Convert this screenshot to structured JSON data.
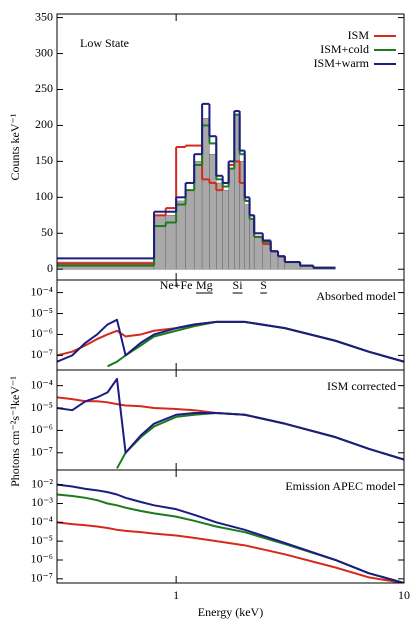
{
  "chart_data": [
    {
      "type": "histogram",
      "title": "Low State",
      "ylabel": "Counts keV⁻¹",
      "bins": [
        0.3,
        0.8,
        0.9,
        1.0,
        1.1,
        1.2,
        1.3,
        1.4,
        1.5,
        1.6,
        1.7,
        1.8,
        1.9,
        2.0,
        2.1,
        2.2,
        2.4,
        2.6,
        2.8,
        3.0,
        3.5,
        4.0,
        5.0
      ],
      "series": [
        {
          "color": "#a9a9a9",
          "values": [
            10,
            75,
            75,
            95,
            110,
            150,
            210,
            160,
            120,
            110,
            140,
            215,
            150,
            90,
            70,
            45,
            35,
            25,
            18,
            10,
            5,
            2
          ]
        },
        {
          "name": "ISM",
          "color": "#d42a1e",
          "values": [
            8,
            75,
            85,
            170,
            172,
            172,
            125,
            120,
            110,
            120,
            145,
            150,
            120,
            95,
            75,
            45,
            35,
            25,
            18,
            10,
            5,
            2
          ]
        },
        {
          "name": "ISM+cold",
          "color": "#1d7a1d",
          "values": [
            5,
            60,
            65,
            90,
            110,
            145,
            200,
            175,
            125,
            115,
            140,
            215,
            160,
            95,
            70,
            45,
            38,
            25,
            18,
            10,
            5,
            2
          ]
        },
        {
          "name": "ISM+warm",
          "color": "#1c1c82",
          "values": [
            15,
            80,
            80,
            100,
            120,
            160,
            230,
            185,
            130,
            120,
            150,
            220,
            165,
            100,
            75,
            50,
            40,
            25,
            18,
            10,
            5,
            2
          ]
        }
      ],
      "xlim": [
        0.3,
        10
      ],
      "xticks": [
        1,
        10
      ],
      "xscale": "log",
      "ylim": [
        -15,
        355
      ],
      "yticks": [
        0,
        50,
        100,
        150,
        200,
        250,
        300,
        350
      ],
      "legend": "upper right"
    },
    {
      "type": "line",
      "title": "Absorbed model",
      "line_labels": [
        "Ne+Fe",
        "Mg",
        "Si",
        "S"
      ],
      "x": [
        0.3,
        0.35,
        0.4,
        0.45,
        0.5,
        0.55,
        0.6,
        0.7,
        0.8,
        1,
        1.2,
        1.5,
        2,
        3,
        5,
        7,
        10
      ],
      "series": [
        {
          "color": "#d42a1e",
          "values": [
            1e-07,
            1.5e-07,
            3e-07,
            6e-07,
            1e-06,
            1.5e-06,
            8e-07,
            1e-06,
            1.5e-06,
            2e-06,
            3e-06,
            4e-06,
            4e-06,
            2e-06,
            5e-07,
            1.5e-07,
            5e-08
          ]
        },
        {
          "color": "#1d7a1d",
          "values": [
            null,
            null,
            null,
            null,
            3e-08,
            5e-08,
            1e-07,
            3e-07,
            8e-07,
            1.5e-06,
            2.5e-06,
            4e-06,
            4e-06,
            2e-06,
            5e-07,
            1.5e-07,
            5e-08
          ]
        },
        {
          "color": "#1c1c82",
          "values": [
            5e-08,
            1e-07,
            4e-07,
            1e-06,
            3e-06,
            5e-06,
            1e-07,
            4e-07,
            1e-06,
            2e-06,
            3e-06,
            4e-06,
            4e-06,
            2e-06,
            5e-07,
            1.5e-07,
            5e-08
          ]
        }
      ],
      "xlim": [
        0.3,
        10
      ],
      "xticks": [
        1,
        10
      ],
      "xscale": "log",
      "yscale": "log",
      "ylim": [
        2e-08,
        0.0004
      ],
      "yticks": [
        {
          "value": 0.0001,
          "label": "10⁻⁴"
        },
        {
          "value": 1e-05,
          "label": "10⁻⁵"
        },
        {
          "value": 1e-06,
          "label": "10⁻⁶"
        },
        {
          "value": 1e-07,
          "label": "10⁻⁷"
        }
      ]
    },
    {
      "type": "line",
      "title": "ISM corrected",
      "ylabel": "Photons cm⁻²s⁻¹keV⁻¹",
      "x": [
        0.3,
        0.35,
        0.4,
        0.45,
        0.5,
        0.55,
        0.6,
        0.7,
        0.8,
        1,
        1.2,
        1.5,
        2,
        3,
        5,
        7,
        10
      ],
      "series": [
        {
          "color": "#d42a1e",
          "values": [
            3e-05,
            2.5e-05,
            2e-05,
            2e-05,
            1.8e-05,
            1.5e-05,
            1.3e-05,
            1.2e-05,
            1e-05,
            9e-06,
            8e-06,
            6e-06,
            5e-06,
            2e-06,
            5e-07,
            1.5e-07,
            5e-08
          ]
        },
        {
          "color": "#1d7a1d",
          "values": [
            null,
            null,
            null,
            null,
            null,
            2e-08,
            1e-07,
            5e-07,
            1.5e-06,
            4e-06,
            5e-06,
            6e-06,
            5e-06,
            2e-06,
            5e-07,
            1.5e-07,
            5e-08
          ]
        },
        {
          "color": "#1c1c82",
          "values": [
            1e-05,
            8e-06,
            2e-05,
            3e-05,
            5e-05,
            0.0002,
            1e-07,
            6e-07,
            2e-06,
            5e-06,
            6e-06,
            6e-06,
            5e-06,
            2e-06,
            5e-07,
            1.5e-07,
            5e-08
          ]
        }
      ],
      "xlim": [
        0.3,
        10
      ],
      "xticks": [
        1,
        10
      ],
      "xscale": "log",
      "yscale": "log",
      "ylim": [
        1.7e-08,
        0.0005
      ],
      "yticks": [
        {
          "value": 0.0001,
          "label": "10⁻⁴"
        },
        {
          "value": 1e-05,
          "label": "10⁻⁵"
        },
        {
          "value": 1e-06,
          "label": "10⁻⁶"
        },
        {
          "value": 1e-07,
          "label": "10⁻⁷"
        }
      ]
    },
    {
      "type": "line",
      "title": "Emission APEC model",
      "xlabel": "Energy (keV)",
      "x": [
        0.3,
        0.35,
        0.4,
        0.45,
        0.5,
        0.55,
        0.6,
        0.7,
        0.8,
        1,
        1.2,
        1.5,
        2,
        3,
        5,
        7,
        10
      ],
      "series": [
        {
          "color": "#d42a1e",
          "values": [
            0.0001,
            8e-05,
            7e-05,
            6e-05,
            5e-05,
            4e-05,
            3.5e-05,
            3e-05,
            2.5e-05,
            2e-05,
            1.5e-05,
            1e-05,
            6e-06,
            2e-06,
            4e-07,
            1.2e-07,
            6e-08
          ]
        },
        {
          "color": "#1d7a1d",
          "values": [
            0.003,
            0.0025,
            0.002,
            0.0015,
            0.001,
            0.0008,
            0.0006,
            0.0004,
            0.0003,
            0.0002,
            0.00012,
            6e-05,
            3e-05,
            7e-06,
            1e-06,
            2e-07,
            6e-08
          ]
        },
        {
          "color": "#1c1c82",
          "values": [
            0.01,
            0.008,
            0.006,
            0.005,
            0.004,
            0.003,
            0.002,
            0.0012,
            0.0008,
            0.0005,
            0.00025,
            0.0001,
            4e-05,
            8e-06,
            1e-06,
            2e-07,
            6e-08
          ]
        }
      ],
      "xlim": [
        0.3,
        10
      ],
      "xticks": [
        1,
        10
      ],
      "xscale": "log",
      "yscale": "log",
      "ylim": [
        6e-08,
        0.06
      ],
      "yticks": [
        {
          "value": 0.01,
          "label": "10⁻²"
        },
        {
          "value": 0.001,
          "label": "10⁻³"
        },
        {
          "value": 0.0001,
          "label": "10⁻⁴"
        },
        {
          "value": 1e-05,
          "label": "10⁻⁵"
        },
        {
          "value": 1e-06,
          "label": "10⁻⁶"
        },
        {
          "value": 1e-07,
          "label": "10⁻⁷"
        }
      ]
    }
  ]
}
